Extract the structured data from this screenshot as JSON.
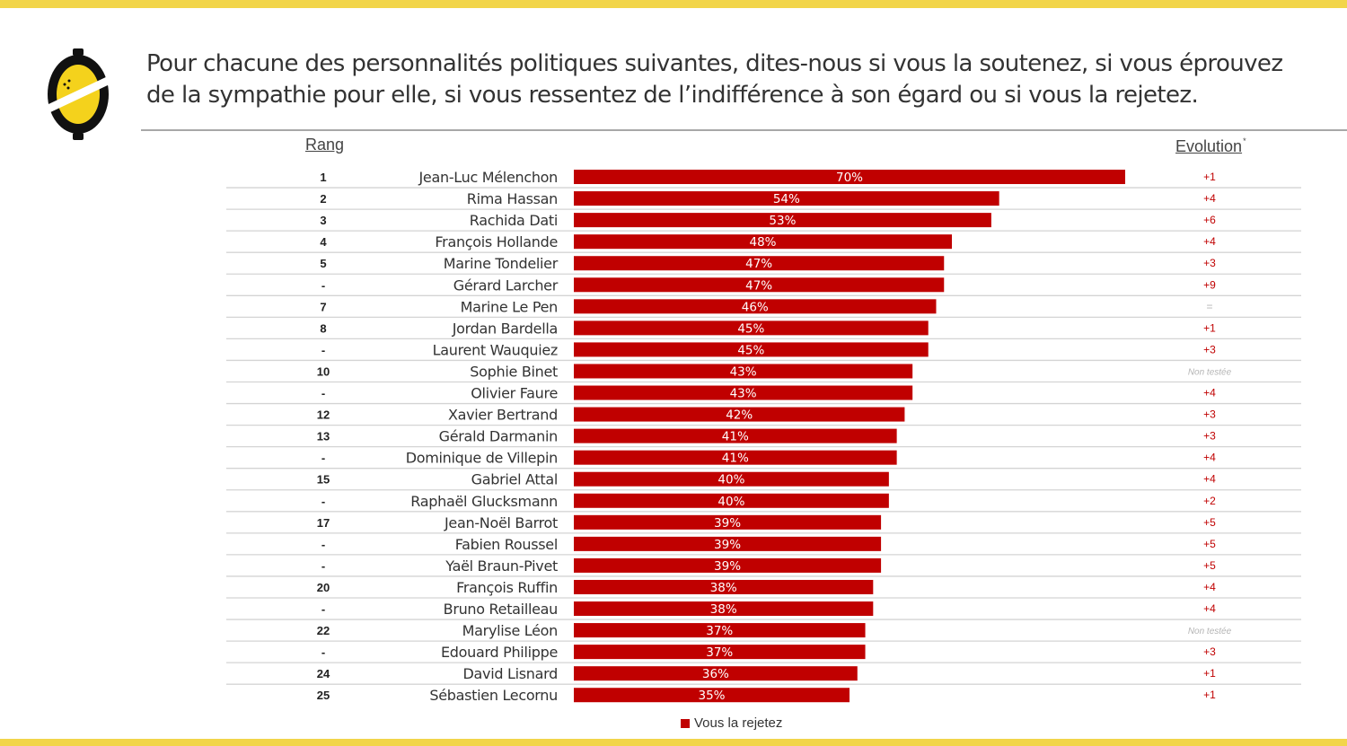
{
  "header": {
    "title": "Pour chacune des personnalités politiques suivantes, dites-nous si vous la soutenez, si vous éprouvez de la sympathie pour elle, si vous ressentez de l’indifférence à son égard ou si vous la rejetez.",
    "rang_label": "Rang",
    "evolution_label": "Evolution",
    "evolution_note_mark": "*"
  },
  "legend": {
    "label": "Vous la rejetez"
  },
  "colors": {
    "bar": "#c00000",
    "accent_yellow": "#f2d54a",
    "evolution_text": "#c00000",
    "not_tested_text": "#b5b5b5"
  },
  "chart_data": {
    "type": "bar",
    "orientation": "horizontal",
    "xlim": [
      0,
      100
    ],
    "series": [
      {
        "name": "Vous la rejetez"
      }
    ],
    "rows": [
      {
        "rank": "1",
        "name": "Jean-Luc Mélenchon",
        "value": 70,
        "label": "70%",
        "evolution": "+1"
      },
      {
        "rank": "2",
        "name": "Rima Hassan",
        "value": 54,
        "label": "54%",
        "evolution": "+4"
      },
      {
        "rank": "3",
        "name": "Rachida Dati",
        "value": 53,
        "label": "53%",
        "evolution": "+6"
      },
      {
        "rank": "4",
        "name": "François Hollande",
        "value": 48,
        "label": "48%",
        "evolution": "+4"
      },
      {
        "rank": "5",
        "name": "Marine Tondelier",
        "value": 47,
        "label": "47%",
        "evolution": "+3"
      },
      {
        "rank": "-",
        "name": "Gérard Larcher",
        "value": 47,
        "label": "47%",
        "evolution": "+9"
      },
      {
        "rank": "7",
        "name": "Marine Le Pen",
        "value": 46,
        "label": "46%",
        "evolution": "="
      },
      {
        "rank": "8",
        "name": "Jordan Bardella",
        "value": 45,
        "label": "45%",
        "evolution": "+1"
      },
      {
        "rank": "-",
        "name": "Laurent Wauquiez",
        "value": 45,
        "label": "45%",
        "evolution": "+3"
      },
      {
        "rank": "10",
        "name": "Sophie Binet",
        "value": 43,
        "label": "43%",
        "evolution": "Non testée"
      },
      {
        "rank": "-",
        "name": "Olivier Faure",
        "value": 43,
        "label": "43%",
        "evolution": "+4"
      },
      {
        "rank": "12",
        "name": "Xavier Bertrand",
        "value": 42,
        "label": "42%",
        "evolution": "+3"
      },
      {
        "rank": "13",
        "name": "Gérald Darmanin",
        "value": 41,
        "label": "41%",
        "evolution": "+3"
      },
      {
        "rank": "-",
        "name": "Dominique de Villepin",
        "value": 41,
        "label": "41%",
        "evolution": "+4"
      },
      {
        "rank": "15",
        "name": "Gabriel Attal",
        "value": 40,
        "label": "40%",
        "evolution": "+4"
      },
      {
        "rank": "-",
        "name": "Raphaël Glucksmann",
        "value": 40,
        "label": "40%",
        "evolution": "+2"
      },
      {
        "rank": "17",
        "name": "Jean-Noël Barrot",
        "value": 39,
        "label": "39%",
        "evolution": "+5"
      },
      {
        "rank": "-",
        "name": "Fabien Roussel",
        "value": 39,
        "label": "39%",
        "evolution": "+5"
      },
      {
        "rank": "-",
        "name": "Yaël Braun-Pivet",
        "value": 39,
        "label": "39%",
        "evolution": "+5"
      },
      {
        "rank": "20",
        "name": "François Ruffin",
        "value": 38,
        "label": "38%",
        "evolution": "+4"
      },
      {
        "rank": "-",
        "name": "Bruno Retailleau",
        "value": 38,
        "label": "38%",
        "evolution": "+4"
      },
      {
        "rank": "22",
        "name": "Marylise Léon",
        "value": 37,
        "label": "37%",
        "evolution": "Non testée"
      },
      {
        "rank": "-",
        "name": "Edouard Philippe",
        "value": 37,
        "label": "37%",
        "evolution": "+3"
      },
      {
        "rank": "24",
        "name": "David Lisnard",
        "value": 36,
        "label": "36%",
        "evolution": "+1"
      },
      {
        "rank": "25",
        "name": "Sébastien Lecornu",
        "value": 35,
        "label": "35%",
        "evolution": "+1"
      }
    ]
  }
}
